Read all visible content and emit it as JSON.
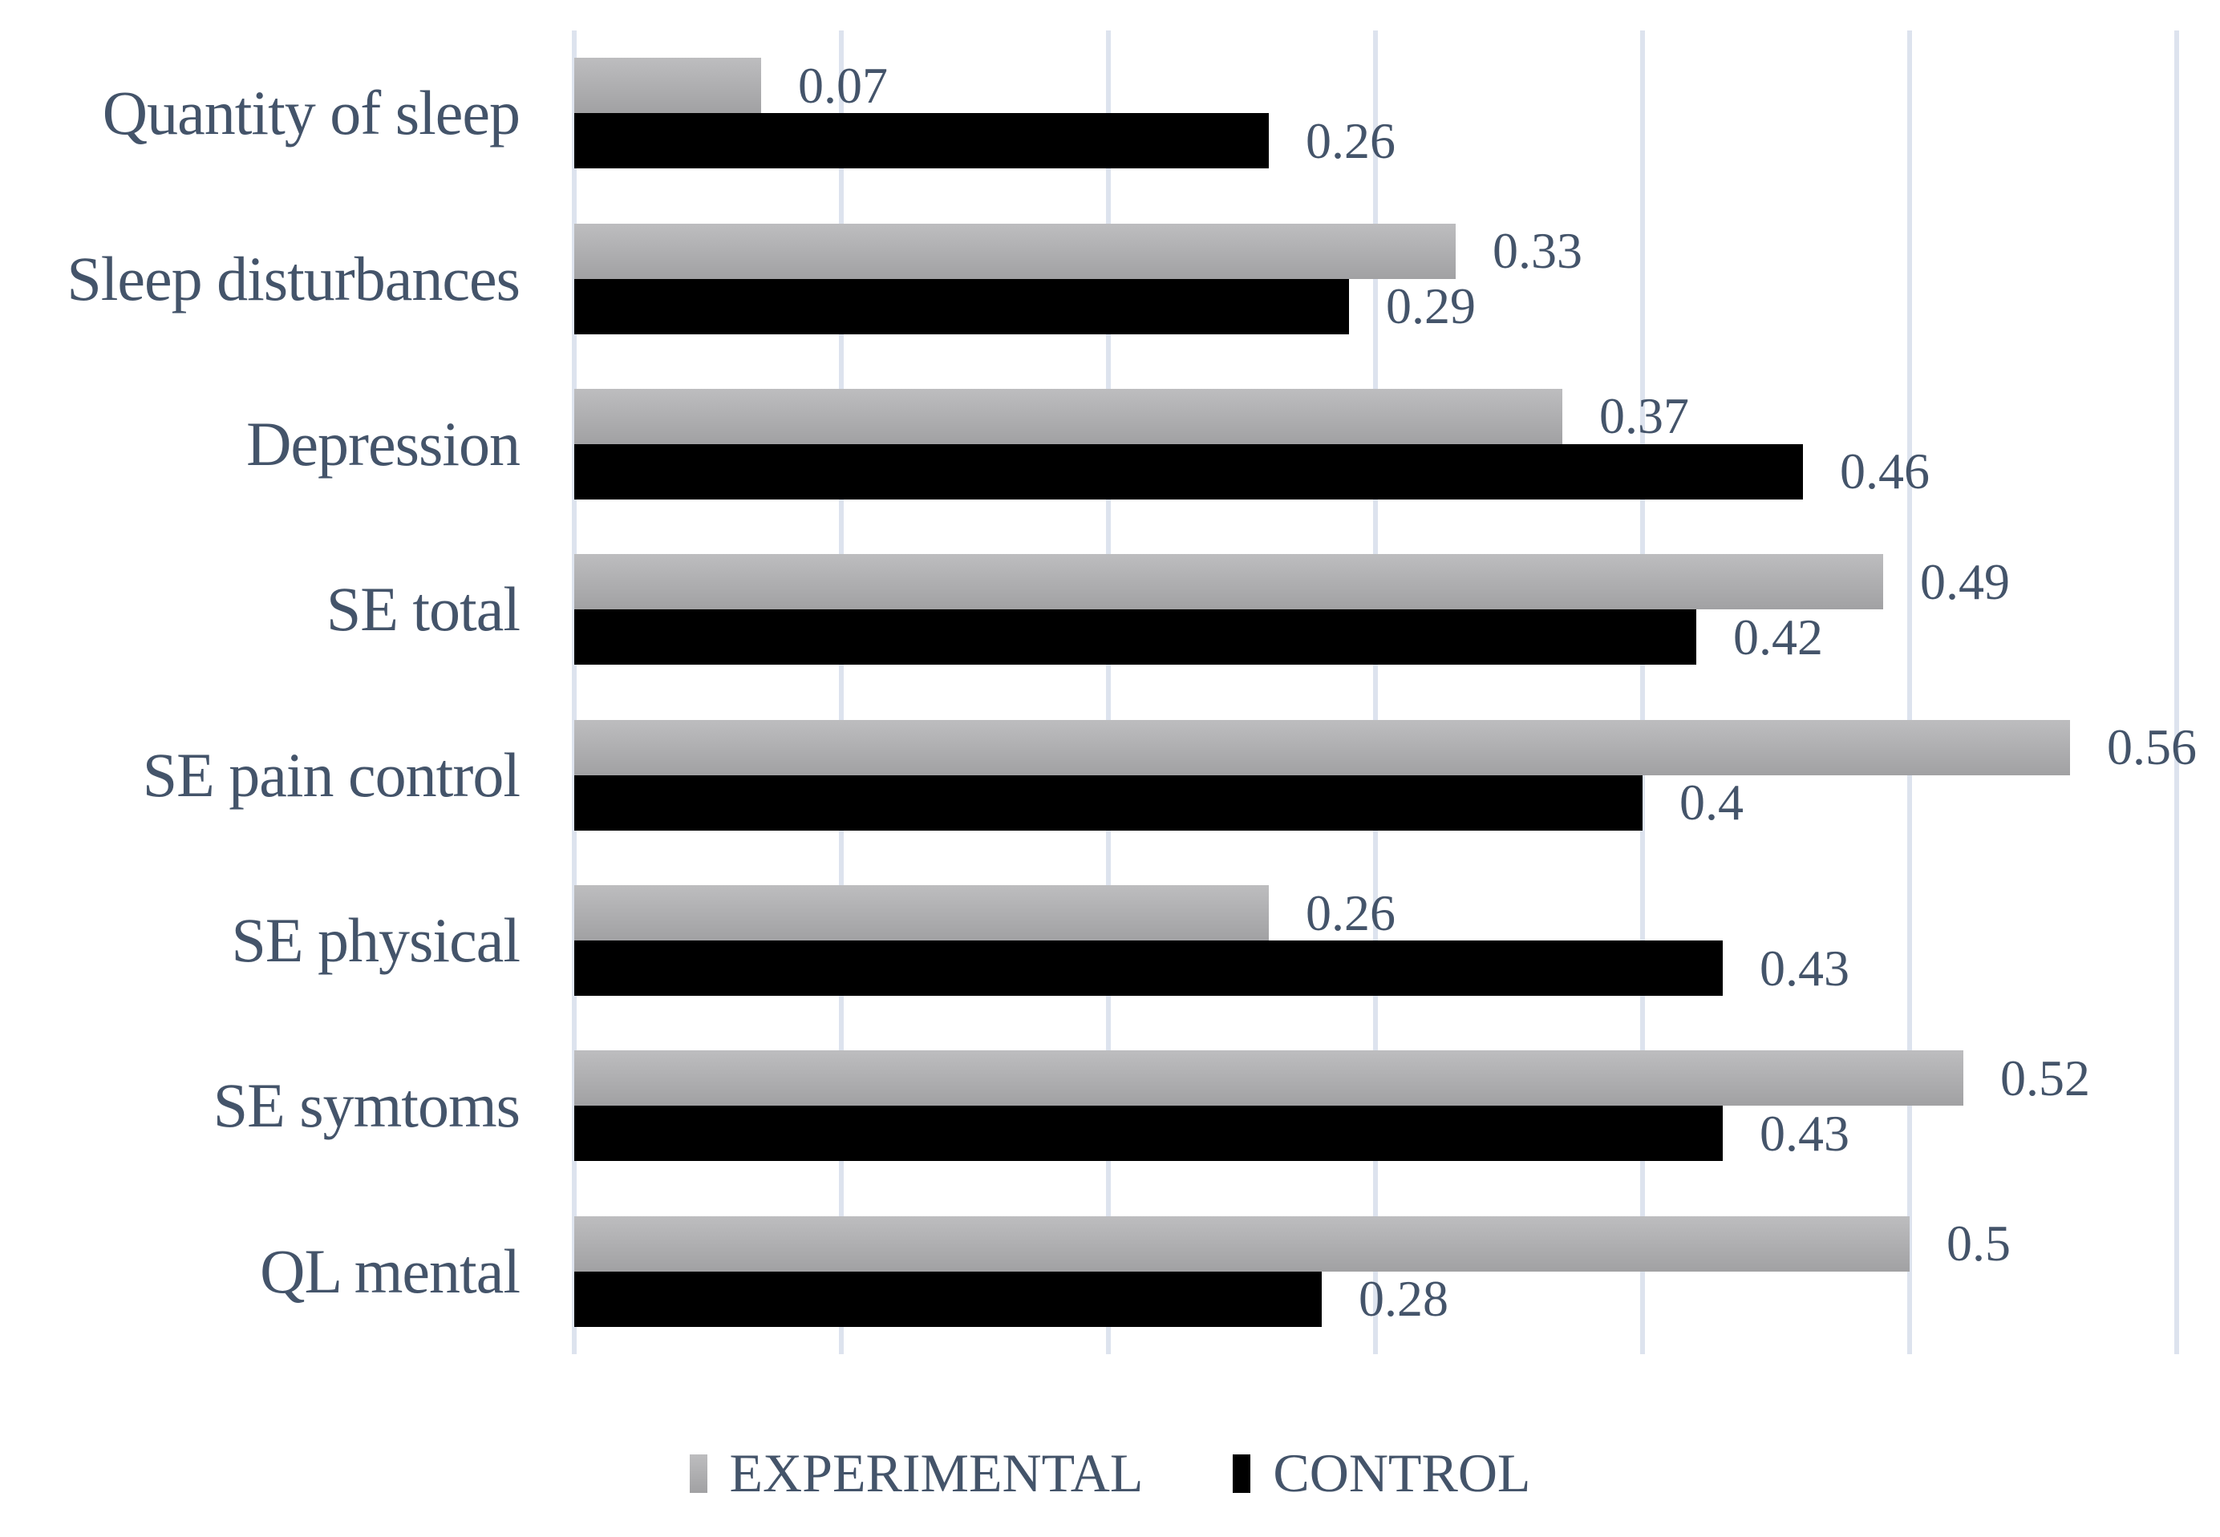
{
  "chart_data": {
    "type": "bar",
    "orientation": "horizontal",
    "title": "",
    "xlabel": "",
    "ylabel": "",
    "xlim": [
      0,
      0.6
    ],
    "grid_step": 0.1,
    "grid_on": true,
    "legend_position": "bottom-center",
    "categories": [
      "Quantity of sleep",
      "Sleep disturbances",
      "Depression",
      "SE total",
      "SE pain control",
      "SE physical",
      "SE symtoms",
      "QL mental"
    ],
    "series": [
      {
        "name": "EXPERIMENTAL",
        "values": [
          0.07,
          0.33,
          0.37,
          0.49,
          0.56,
          0.26,
          0.52,
          0.5
        ],
        "labels": [
          "0.07",
          "0.33",
          "0.37",
          "0.49",
          "0.56",
          "0.26",
          "0.52",
          "0.5"
        ]
      },
      {
        "name": "CONTROL",
        "values": [
          0.26,
          0.29,
          0.46,
          0.42,
          0.4,
          0.43,
          0.43,
          0.28
        ],
        "labels": [
          "0.26",
          "0.29",
          "0.46",
          "0.42",
          "0.4",
          "0.43",
          "0.43",
          "0.28"
        ]
      }
    ],
    "colors": {
      "experimental_top": "#bdbdbf",
      "experimental_bottom": "#a1a1a3",
      "control": "#000000",
      "text": "#44546A",
      "gridline": "#dde3ee"
    }
  }
}
